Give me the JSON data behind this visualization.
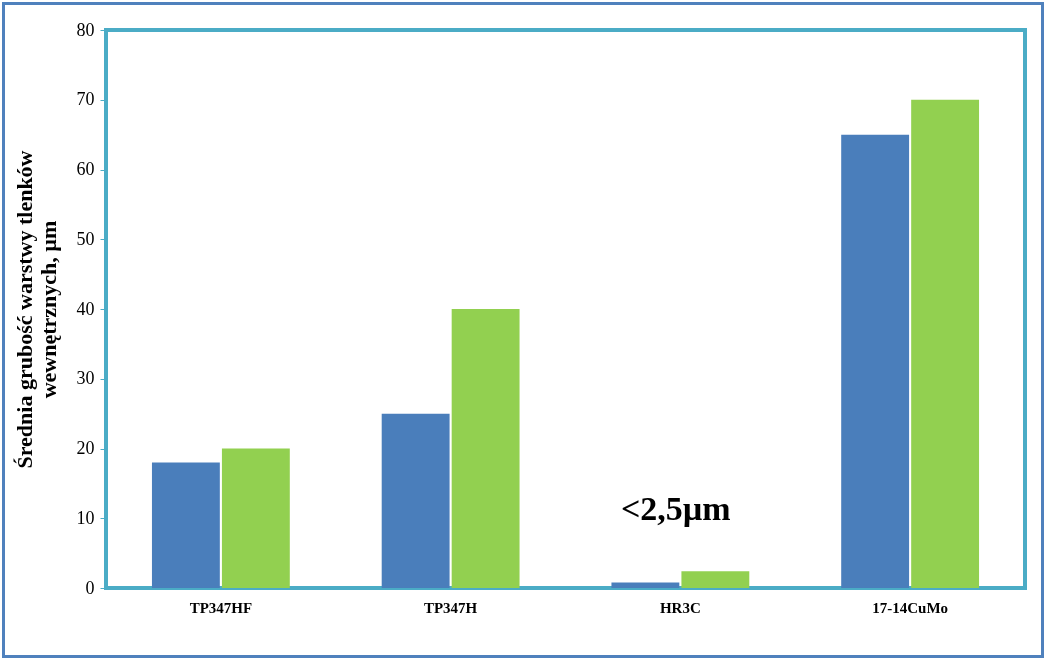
{
  "chart_data": {
    "type": "bar",
    "ylabel": "Średnia grubość warstwy tlenków wewnętrznych, µm",
    "categories": [
      "TP347HF",
      "TP347H",
      "HR3C",
      "17-14CuMo"
    ],
    "series": [
      {
        "color": "#4a7ebb",
        "values": [
          18,
          25,
          0.8,
          65
        ]
      },
      {
        "color": "#92d050",
        "values": [
          20,
          40,
          2.4,
          70
        ]
      }
    ],
    "ylim": [
      0,
      80
    ],
    "yticks": [
      0,
      10,
      20,
      30,
      40,
      50,
      60,
      70,
      80
    ],
    "grid": false,
    "legend": false,
    "annotations": [
      "<2,5µm"
    ]
  }
}
